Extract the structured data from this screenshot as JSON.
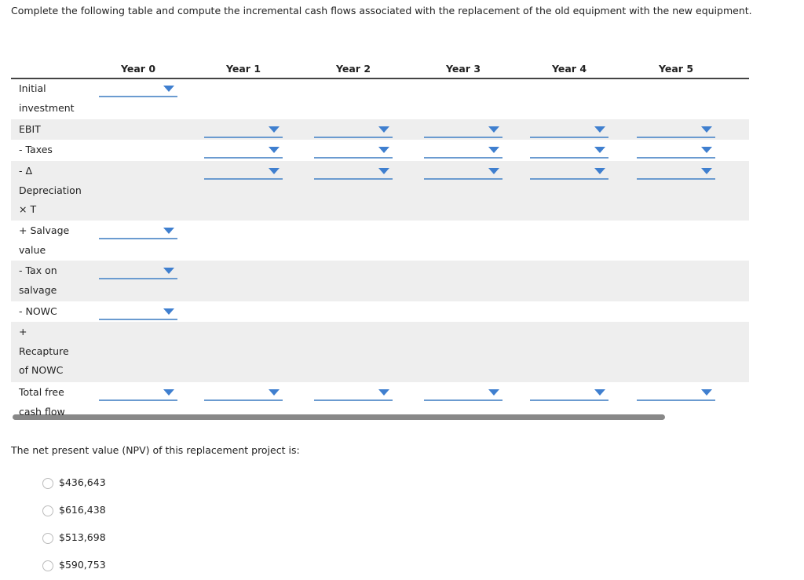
{
  "instruction": "Complete the following table and compute the incremental cash flows associated with the replacement of the old equipment with the new equipment.",
  "table": {
    "headers": [
      "Year 0",
      "Year 1",
      "Year 2",
      "Year 3",
      "Year 4",
      "Year 5"
    ],
    "rows": [
      "Initial investment",
      "EBIT",
      "- Taxes",
      "- Δ Depreciation × T",
      "+ Salvage value",
      "- Tax on salvage",
      "- NOWC",
      "+ Recapture of NOWC",
      "Total free cash flow"
    ]
  },
  "question": "The net present value (NPV) of this replacement project is:",
  "options": [
    "$436,643",
    "$616,438",
    "$513,698",
    "$590,753"
  ]
}
